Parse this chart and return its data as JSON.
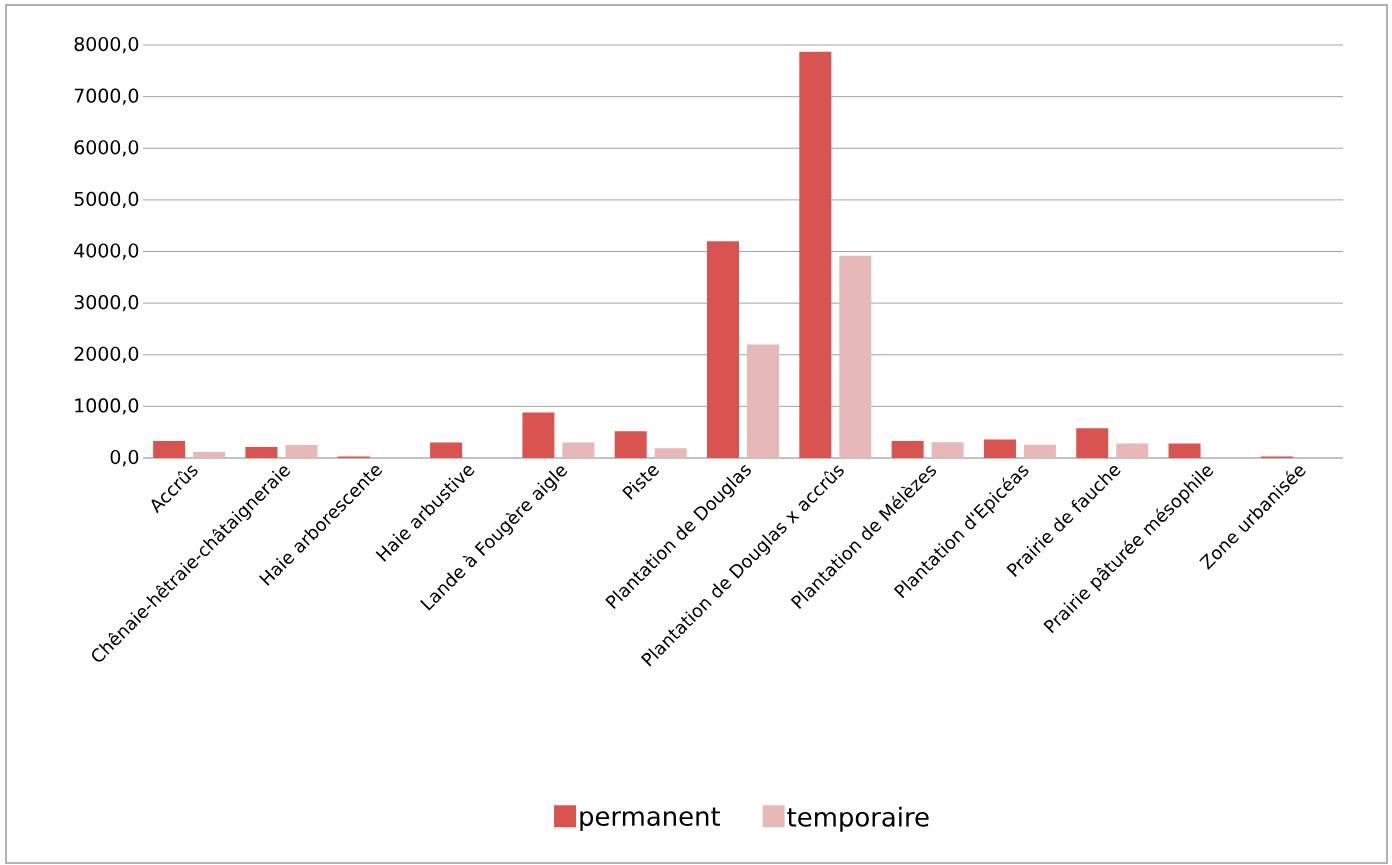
{
  "chart_data": {
    "type": "bar",
    "categories": [
      "Accrûs",
      "Chênaie-hêtraie-châtaigneraie",
      "Haie arborescente",
      "Haie arbustive",
      "Lande à Fougère aigle",
      "Piste",
      "Plantation de Douglas",
      "Plantation de Douglas x accrûs",
      "Plantation de Mélèzes",
      "Plantation d'Epicéas",
      "Prairie de fauche",
      "Prairie pâturée mésophile",
      "Zone urbanisée"
    ],
    "series": [
      {
        "name": "permanent",
        "color": "#d95350",
        "values": [
          330,
          215,
          30,
          300,
          880,
          520,
          4200,
          7870,
          330,
          360,
          575,
          280,
          30
        ]
      },
      {
        "name": "temporaire",
        "color": "#e6b8b7",
        "values": [
          115,
          250,
          0,
          0,
          300,
          190,
          2200,
          3920,
          305,
          255,
          280,
          0,
          0
        ]
      }
    ],
    "ylim": [
      0,
      8000
    ],
    "yticks": [
      {
        "value": 0,
        "label": "0,0"
      },
      {
        "value": 1000,
        "label": "1000,0"
      },
      {
        "value": 2000,
        "label": "2000,0"
      },
      {
        "value": 3000,
        "label": "3000,0"
      },
      {
        "value": 4000,
        "label": "4000,0"
      },
      {
        "value": 5000,
        "label": "5000,0"
      },
      {
        "value": 6000,
        "label": "6000,0"
      },
      {
        "value": 7000,
        "label": "7000,0"
      },
      {
        "value": 8000,
        "label": "8000,0"
      }
    ],
    "grid": "y",
    "legend": "bottom"
  }
}
